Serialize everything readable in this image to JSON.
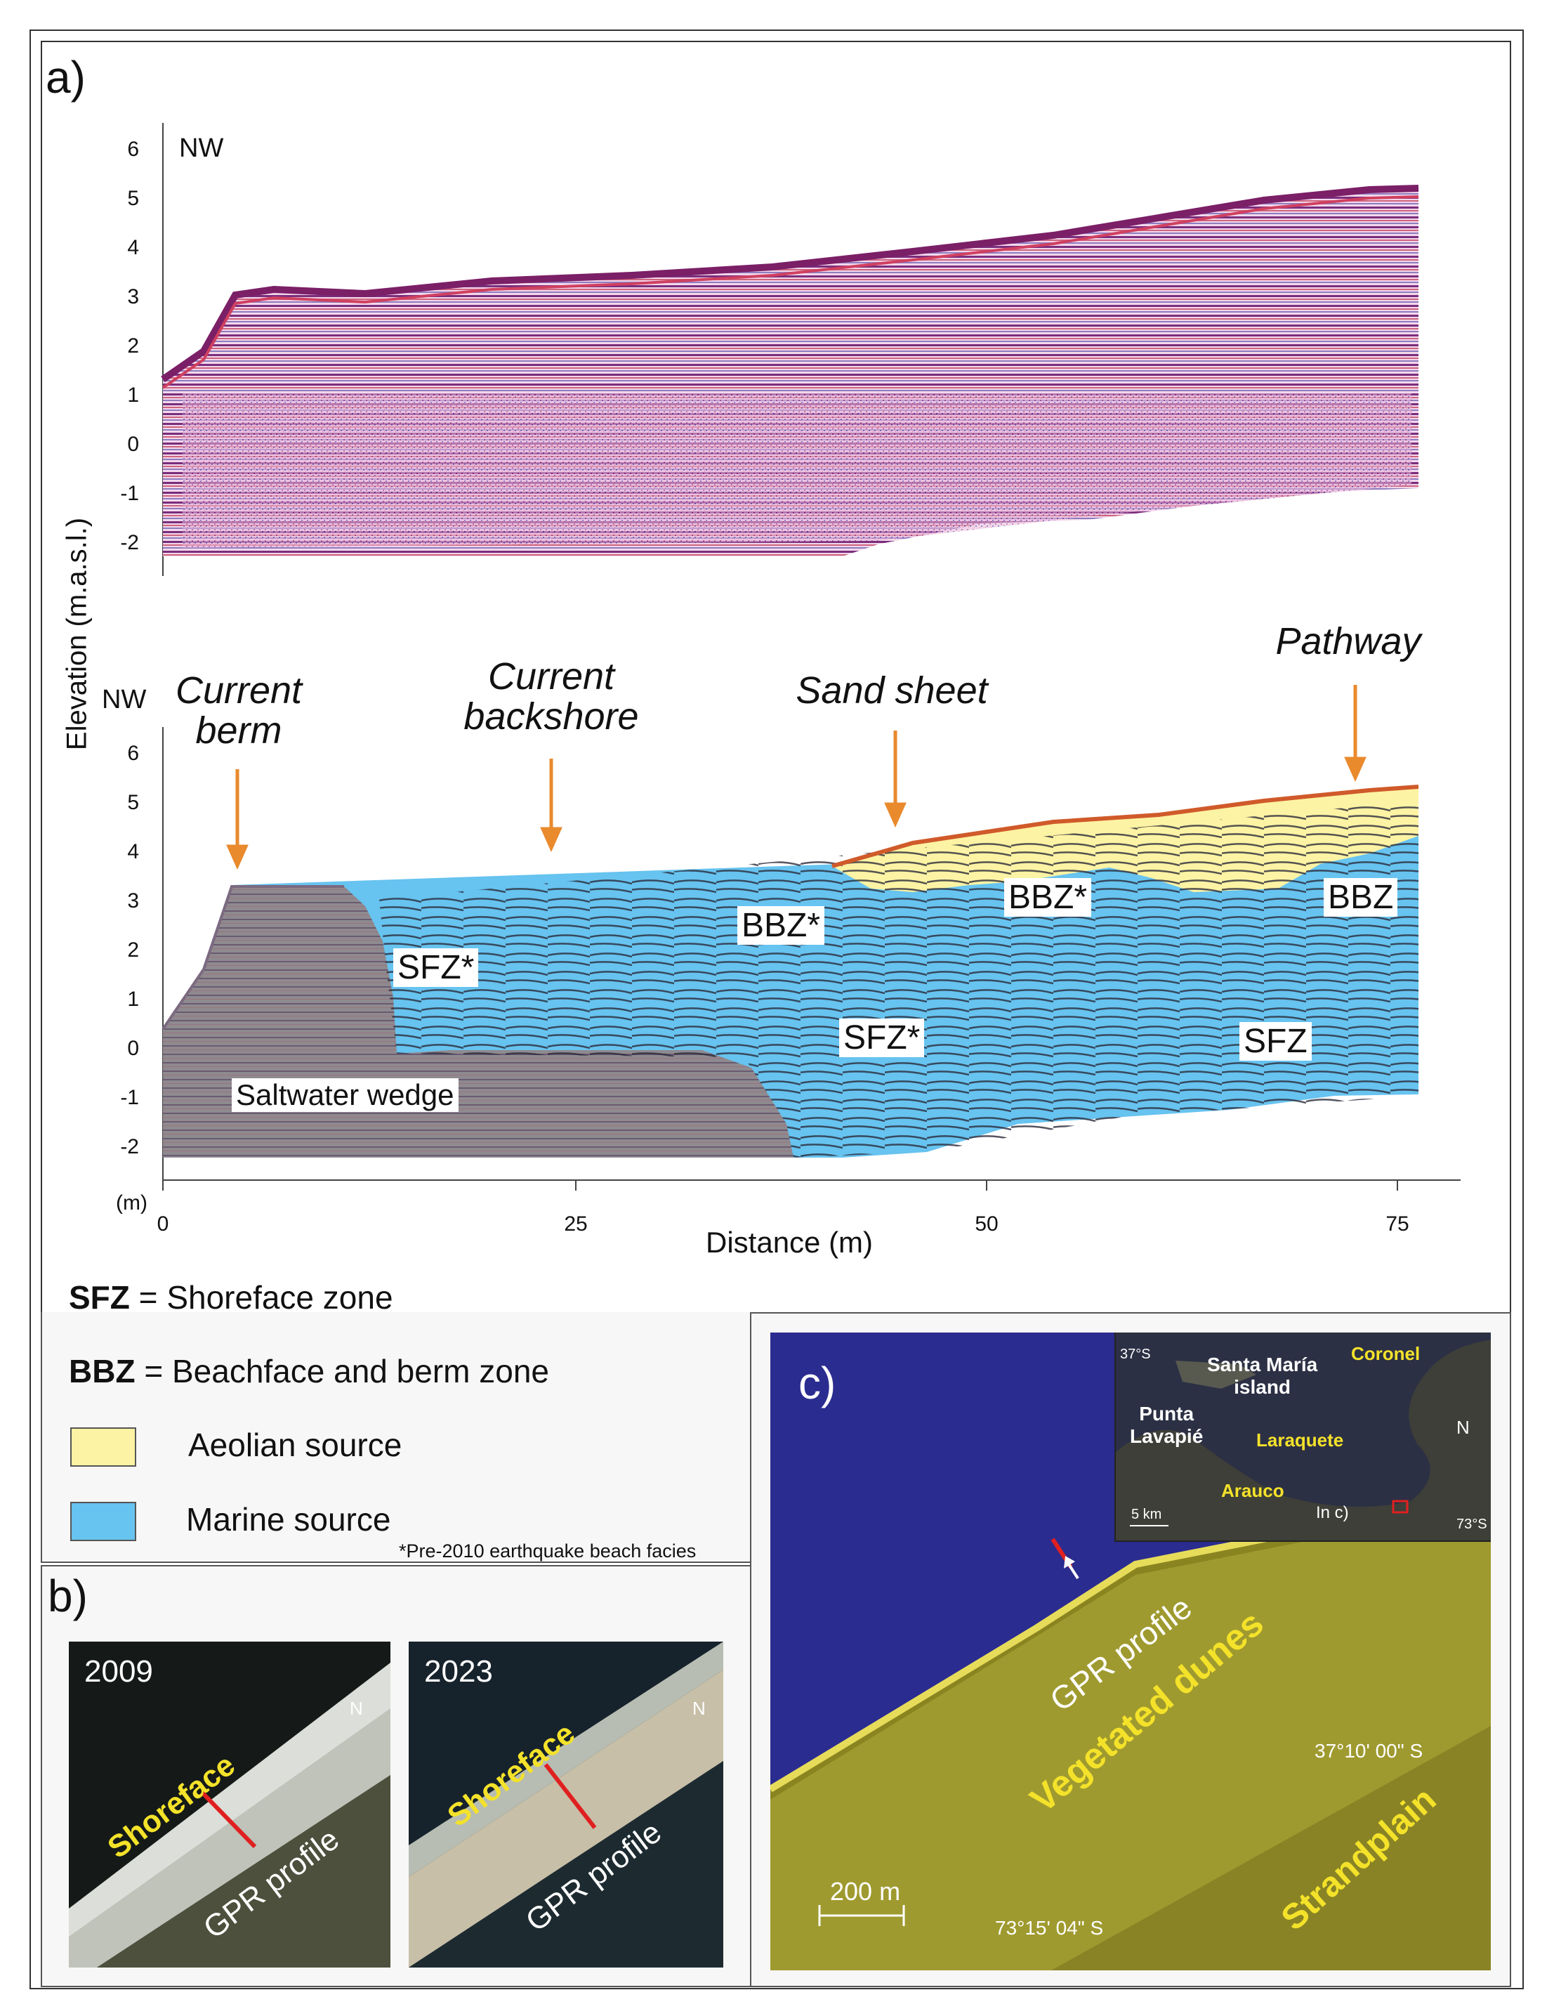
{
  "panel_a": {
    "label": "a)",
    "top_profile": {
      "direction_label": "NW",
      "y_ticks": [
        "6",
        "5",
        "4",
        "3",
        "2",
        "1",
        "0",
        "-1",
        "-2"
      ]
    },
    "bottom_profile": {
      "direction_label": "NW",
      "y_ticks": [
        "6",
        "5",
        "4",
        "3",
        "2",
        "1",
        "0",
        "-1",
        "-2"
      ],
      "y_unit": "(m)",
      "annotations": {
        "current_berm": "Current\nberm",
        "current_backshore": "Current\nbackshore",
        "sand_sheet": "Sand sheet",
        "pathway": "Pathway"
      },
      "zones": {
        "sfz_star_left": "SFZ*",
        "bbz_star_left": "BBZ*",
        "bbz_star_right": "BBZ*",
        "bbz": "BBZ",
        "sfz_star_mid": "SFZ*",
        "sfz": "SFZ",
        "saltwater_wedge": "Saltwater wedge"
      },
      "x_ticks": [
        "0",
        "25",
        "50",
        "75"
      ]
    },
    "y_axis_label": "Elevation (m.a.s.l.)",
    "x_axis_label": "Distance (m)",
    "legend": {
      "sfz_abbr": "SFZ",
      "sfz_def": " = Shoreface zone",
      "bbz_abbr": "BBZ",
      "bbz_def": " = Beachface and berm zone",
      "aeolian": "Aeolian source",
      "marine": "Marine source",
      "footnote": "*Pre-2010 earthquake beach facies"
    },
    "colors": {
      "aeolian": "#fdf3a4",
      "marine": "#67c3ef",
      "saltwater": "#8e8a8f",
      "arrow": "#e98a2d"
    }
  },
  "panel_b": {
    "label": "b)",
    "image_2009": {
      "year": "2009",
      "shoreface": "Shoreface",
      "gpr": "GPR profile",
      "north": "N"
    },
    "image_2023": {
      "year": "2023",
      "shoreface": "Shoreface",
      "gpr": "GPR profile",
      "north": "N"
    }
  },
  "panel_c": {
    "label": "c)",
    "gpr_label": "GPR profile",
    "vegetated_dunes": "Vegetated dunes",
    "strandplain": "Strandplain",
    "scale": "200 m",
    "lat_label": "37°10' 00\" S",
    "lon_label": "73°15' 04\" S",
    "inset": {
      "lat": "37°S",
      "lon": "73°S",
      "santa_maria": "Santa María\nisland",
      "punta_lavapie": "Punta\nLavapié",
      "coronel": "Coronel",
      "laraquete": "Laraquete",
      "arauco": "Arauco",
      "in_c": "In c)",
      "scale": "5 km",
      "north": "N"
    }
  }
}
